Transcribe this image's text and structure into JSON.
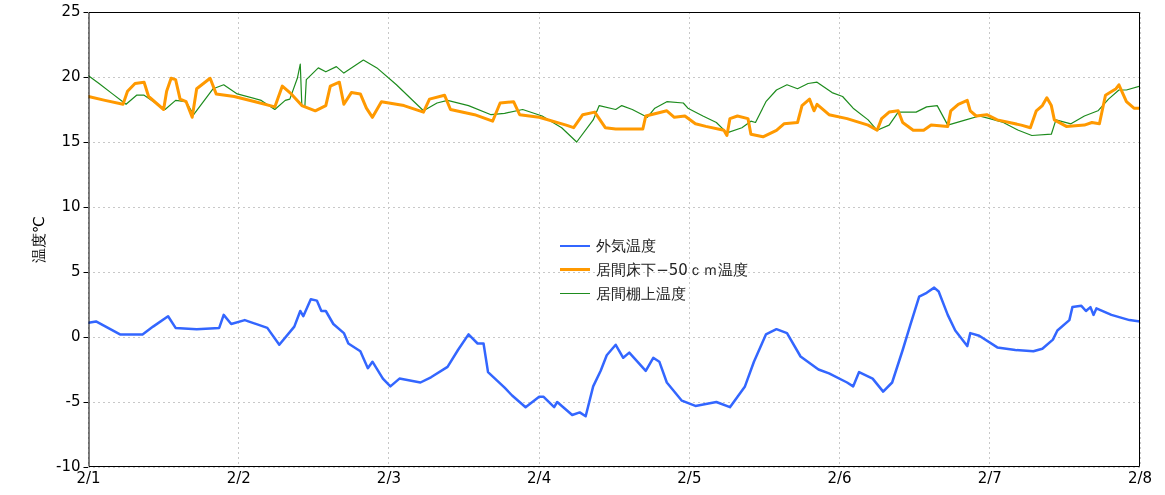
{
  "chart_data": {
    "type": "line",
    "ylabel": "温度℃",
    "xlim": [
      "--02-01",
      "--02-08"
    ],
    "xticks": [
      {
        "value": "--02-01",
        "label": "2/1"
      },
      {
        "value": "--02-02",
        "label": "2/2"
      },
      {
        "value": "--02-03",
        "label": "2/3"
      },
      {
        "value": "--02-04",
        "label": "2/4"
      },
      {
        "value": "--02-05",
        "label": "2/5"
      },
      {
        "value": "--02-06",
        "label": "2/6"
      },
      {
        "value": "--02-07",
        "label": "2/7"
      },
      {
        "value": "--02-08",
        "label": "2/8"
      }
    ],
    "ylim": [
      -10,
      25
    ],
    "yticks": [
      -10,
      -5,
      0,
      5,
      10,
      15,
      20,
      25
    ],
    "grid": true,
    "legend": "center",
    "marker": "none",
    "line_style": "solid",
    "series": [
      {
        "name": "外気温度",
        "color": "#3366ff",
        "x": [
          "--02-01T00:00",
          "--02-01T01:12",
          "--02-01T05:02",
          "--02-01T08:38",
          "--02-01T10:19",
          "--02-01T12:43",
          "--02-01T13:55",
          "--02-01T17:17",
          "--02-01T20:53",
          "--02-01T21:36",
          "--02-01T22:48",
          "--02-02T00:58",
          "--02-02T04:34",
          "--02-02T06:29",
          "--02-02T08:53",
          "--02-02T09:50",
          "--02-02T10:19",
          "--02-02T11:31",
          "--02-02T12:29",
          "--02-02T13:12",
          "--02-02T13:55",
          "--02-02T15:07",
          "--02-02T16:48",
          "--02-02T17:31",
          "--02-02T19:26",
          "--02-02T20:38",
          "--02-02T21:22",
          "--02-02T23:02",
          "--02-03T00:14",
          "--02-03T01:41",
          "--02-03T05:02",
          "--02-03T06:43",
          "--02-03T09:22",
          "--02-03T11:02",
          "--02-03T12:43",
          "--02-03T14:10",
          "--02-03T15:07",
          "--02-03T15:50",
          "--02-03T18:29",
          "--02-03T19:41",
          "--02-03T21:50",
          "--02-04T00:00",
          "--02-04T00:43",
          "--02-04T02:24",
          "--02-04T02:53",
          "--02-04T05:17",
          "--02-04T06:29",
          "--02-04T07:26",
          "--02-04T08:38",
          "--02-04T09:50",
          "--02-04T10:48",
          "--02-04T12:14",
          "--02-04T13:26",
          "--02-04T14:24",
          "--02-04T17:02",
          "--02-04T18:14",
          "--02-04T19:12",
          "--02-04T20:24",
          "--02-04T22:48",
          "--02-05T00:58",
          "--02-05T04:19",
          "--02-05T06:29",
          "--02-05T08:53",
          "--02-05T10:19",
          "--02-05T12:14",
          "--02-05T13:55",
          "--02-05T15:36",
          "--02-05T17:46",
          "--02-05T20:38",
          "--02-05T22:19",
          "--02-06T01:12",
          "--02-06T02:10",
          "--02-06T03:07",
          "--02-06T05:17",
          "--02-06T06:58",
          "--02-06T08:24",
          "--02-06T10:05",
          "--02-06T11:17",
          "--02-06T12:43",
          "--02-06T13:55",
          "--02-06T15:07",
          "--02-06T15:50",
          "--02-06T17:17",
          "--02-06T18:29",
          "--02-06T20:24",
          "--02-06T20:53",
          "--02-06T22:19",
          "--02-07T01:12",
          "--02-07T04:05",
          "--02-07T06:58",
          "--02-07T08:24",
          "--02-07T10:05",
          "--02-07T10:48",
          "--02-07T12:43",
          "--02-07T13:12",
          "--02-07T14:38",
          "--02-07T15:22",
          "--02-07T16:05",
          "--02-07T16:34",
          "--02-07T17:02",
          "--02-07T19:26",
          "--02-07T22:19",
          "--02-08T00:00"
        ],
        "values": [
          1.1,
          1.2,
          0.2,
          0.2,
          0.8,
          1.6,
          0.7,
          0.6,
          0.7,
          1.7,
          1.0,
          1.3,
          0.7,
          -0.6,
          0.8,
          2.0,
          1.6,
          2.9,
          2.8,
          2.0,
          2.0,
          1.0,
          0.3,
          -0.5,
          -1.1,
          -2.4,
          -1.9,
          -3.2,
          -3.8,
          -3.2,
          -3.5,
          -3.1,
          -2.3,
          -1.0,
          0.2,
          -0.5,
          -0.5,
          -2.7,
          -3.9,
          -4.5,
          -5.4,
          -4.6,
          -4.6,
          -5.4,
          -5.0,
          -6.0,
          -5.8,
          -6.1,
          -3.8,
          -2.6,
          -1.4,
          -0.6,
          -1.6,
          -1.2,
          -2.6,
          -1.6,
          -1.9,
          -3.5,
          -4.9,
          -5.3,
          -5.0,
          -5.4,
          -3.8,
          -1.9,
          0.2,
          0.6,
          0.3,
          -1.5,
          -2.5,
          -2.8,
          -3.5,
          -3.8,
          -2.7,
          -3.2,
          -4.2,
          -3.5,
          -1.0,
          0.9,
          3.1,
          3.4,
          3.8,
          3.5,
          1.7,
          0.5,
          -0.7,
          0.3,
          0.1,
          -0.8,
          -1.0,
          -1.1,
          -0.9,
          -0.2,
          0.5,
          1.3,
          2.3,
          2.4,
          2.0,
          2.3,
          1.7,
          2.2,
          1.7,
          1.3,
          1.2
        ]
      },
      {
        "name": "居間床下−50ｃｍ温度",
        "color": "#ff9900",
        "x": [
          "--02-01T00:00",
          "--02-01T02:38",
          "--02-01T05:31",
          "--02-01T06:14",
          "--02-01T07:26",
          "--02-01T08:53",
          "--02-01T09:36",
          "--02-01T12:00",
          "--02-01T12:29",
          "--02-01T13:12",
          "--02-01T13:55",
          "--02-01T14:38",
          "--02-01T15:36",
          "--02-01T16:34",
          "--02-01T17:17",
          "--02-01T19:26",
          "--02-01T20:24",
          "--02-01T23:17",
          "--02-02T02:38",
          "--02-02T05:46",
          "--02-02T06:58",
          "--02-02T08:24",
          "--02-02T10:05",
          "--02-02T12:14",
          "--02-02T13:55",
          "--02-02T14:38",
          "--02-02T16:05",
          "--02-02T16:48",
          "--02-02T18:00",
          "--02-02T19:26",
          "--02-02T20:24",
          "--02-02T21:22",
          "--02-02T22:48",
          "--02-03T02:24",
          "--02-03T05:31",
          "--02-03T06:29",
          "--02-03T08:53",
          "--02-03T09:50",
          "--02-03T13:41",
          "--02-03T16:34",
          "--02-03T17:46",
          "--02-03T19:55",
          "--02-03T20:53",
          "--02-04T00:00",
          "--02-04T04:19",
          "--02-04T05:31",
          "--02-04T06:58",
          "--02-04T08:53",
          "--02-04T10:34",
          "--02-04T12:14",
          "--02-04T16:34",
          "--02-04T17:02",
          "--02-04T20:24",
          "--02-04T21:36",
          "--02-04T23:17",
          "--02-05T00:58",
          "--02-05T02:38",
          "--02-05T05:31",
          "--02-05T06:00",
          "--02-05T06:29",
          "--02-05T07:41",
          "--02-05T09:22",
          "--02-05T09:50",
          "--02-05T11:46",
          "--02-05T13:55",
          "--02-05T15:07",
          "--02-05T17:17",
          "--02-05T18:00",
          "--02-05T19:12",
          "--02-05T19:55",
          "--02-05T20:24",
          "--02-05T22:19",
          "--02-06T01:12",
          "--02-06T04:34",
          "--02-06T06:00",
          "--02-06T06:43",
          "--02-06T07:55",
          "--02-06T09:22",
          "--02-06T10:05",
          "--02-06T11:46",
          "--02-06T13:26",
          "--02-06T14:38",
          "--02-06T17:17",
          "--02-06T17:46",
          "--02-06T18:58",
          "--02-06T20:24",
          "--02-06T20:53",
          "--02-06T21:50",
          "--02-06T23:31",
          "--02-07T01:12",
          "--02-07T05:02",
          "--02-07T06:29",
          "--02-07T07:26",
          "--02-07T08:24",
          "--02-07T09:07",
          "--02-07T09:50",
          "--02-07T10:19",
          "--02-07T12:14",
          "--02-07T15:07",
          "--02-07T16:19",
          "--02-07T17:31",
          "--02-07T18:29",
          "--02-07T20:10",
          "--02-07T20:38",
          "--02-07T21:50",
          "--02-07T23:02",
          "--02-08T00:00"
        ],
        "values": [
          18.5,
          18.2,
          17.9,
          18.9,
          19.5,
          19.6,
          18.5,
          17.5,
          18.9,
          19.9,
          19.8,
          18.3,
          18.1,
          16.9,
          19.1,
          19.9,
          18.7,
          18.5,
          18.1,
          17.7,
          19.3,
          18.7,
          17.8,
          17.4,
          17.8,
          19.3,
          19.6,
          17.9,
          18.8,
          18.7,
          17.6,
          16.9,
          18.1,
          17.8,
          17.3,
          18.3,
          18.6,
          17.5,
          17.1,
          16.6,
          18.0,
          18.1,
          17.1,
          16.9,
          16.3,
          16.1,
          17.1,
          17.3,
          16.1,
          16.0,
          16.0,
          17.0,
          17.4,
          16.9,
          17.0,
          16.4,
          16.2,
          15.9,
          15.5,
          16.8,
          17.0,
          16.8,
          15.6,
          15.4,
          15.9,
          16.4,
          16.5,
          17.8,
          18.3,
          17.4,
          17.9,
          17.1,
          16.8,
          16.3,
          15.9,
          16.8,
          17.3,
          17.4,
          16.5,
          15.9,
          15.9,
          16.3,
          16.2,
          17.4,
          17.9,
          18.2,
          17.4,
          17.0,
          17.1,
          16.7,
          16.3,
          16.1,
          17.4,
          17.8,
          18.4,
          17.8,
          16.7,
          16.2,
          16.3,
          16.5,
          16.4,
          18.6,
          19.1,
          19.4,
          18.1,
          17.6,
          17.6
        ]
      },
      {
        "name": "居間棚上温度",
        "color": "#1e8c1e",
        "x": [
          "--02-01T00:00",
          "--02-01T01:41",
          "--02-01T03:50",
          "--02-01T06:00",
          "--02-01T07:41",
          "--02-01T08:53",
          "--02-01T12:14",
          "--02-01T13:55",
          "--02-01T15:36",
          "--02-01T16:48",
          "--02-01T19:55",
          "--02-01T21:36",
          "--02-01T23:46",
          "--02-02T03:36",
          "--02-02T05:46",
          "--02-02T07:26",
          "--02-02T08:10",
          "--02-02T09:22",
          "--02-02T09:50",
          "--02-02T10:05",
          "--02-02T10:34",
          "--02-02T10:48",
          "--02-02T12:43",
          "--02-02T13:55",
          "--02-02T15:36",
          "--02-02T16:48",
          "--02-02T19:55",
          "--02-02T22:05",
          "--02-03T01:12",
          "--02-03T05:31",
          "--02-03T07:41",
          "--02-03T09:22",
          "--02-03T12:43",
          "--02-03T16:19",
          "--02-03T18:29",
          "--02-03T21:22",
          "--02-04T00:29",
          "--02-04T03:36",
          "--02-04T06:00",
          "--02-04T08:38",
          "--02-04T09:36",
          "--02-04T12:14",
          "--02-04T13:12",
          "--02-04T14:53",
          "--02-04T17:17",
          "--02-04T18:29",
          "--02-04T20:24",
          "--02-04T23:02",
          "--02-04T23:46",
          "--02-05T02:10",
          "--02-05T04:19",
          "--02-05T06:00",
          "--02-05T08:24",
          "--02-05T09:50",
          "--02-05T10:34",
          "--02-05T12:14",
          "--02-05T13:55",
          "--02-05T15:36",
          "--02-05T17:17",
          "--02-05T18:58",
          "--02-05T20:24",
          "--02-05T22:48",
          "--02-06T00:29",
          "--02-06T02:10",
          "--02-06T04:34",
          "--02-06T06:00",
          "--02-06T07:55",
          "--02-06T09:22",
          "--02-06T12:14",
          "--02-06T13:55",
          "--02-06T15:36",
          "--02-06T17:17",
          "--02-06T20:10",
          "--02-06T22:19",
          "--02-07T00:00",
          "--02-07T02:10",
          "--02-07T04:34",
          "--02-07T06:43",
          "--02-07T09:50",
          "--02-07T10:34",
          "--02-07T12:58",
          "--02-07T15:07",
          "--02-07T17:17",
          "--02-07T18:58",
          "--02-07T20:38",
          "--02-07T21:50",
          "--02-08T00:00"
        ],
        "values": [
          20.1,
          19.5,
          18.7,
          17.9,
          18.6,
          18.6,
          17.5,
          18.2,
          18.1,
          17.1,
          19.1,
          19.4,
          18.7,
          18.2,
          17.5,
          18.2,
          18.3,
          19.9,
          21.0,
          17.8,
          17.7,
          19.8,
          20.7,
          20.4,
          20.8,
          20.3,
          21.3,
          20.7,
          19.4,
          17.4,
          18.0,
          18.2,
          17.8,
          17.1,
          17.2,
          17.5,
          17.0,
          16.1,
          15.0,
          16.7,
          17.8,
          17.5,
          17.8,
          17.5,
          16.9,
          17.6,
          18.1,
          18.0,
          17.6,
          17.0,
          16.5,
          15.7,
          16.1,
          16.6,
          16.5,
          18.1,
          19.0,
          19.4,
          19.1,
          19.5,
          19.6,
          18.8,
          18.5,
          17.6,
          16.7,
          15.9,
          16.3,
          17.3,
          17.3,
          17.7,
          17.8,
          16.3,
          16.7,
          17.0,
          16.8,
          16.5,
          15.9,
          15.5,
          15.6,
          16.7,
          16.4,
          17.0,
          17.4,
          18.3,
          19.0,
          19.0,
          19.3
        ]
      }
    ]
  }
}
